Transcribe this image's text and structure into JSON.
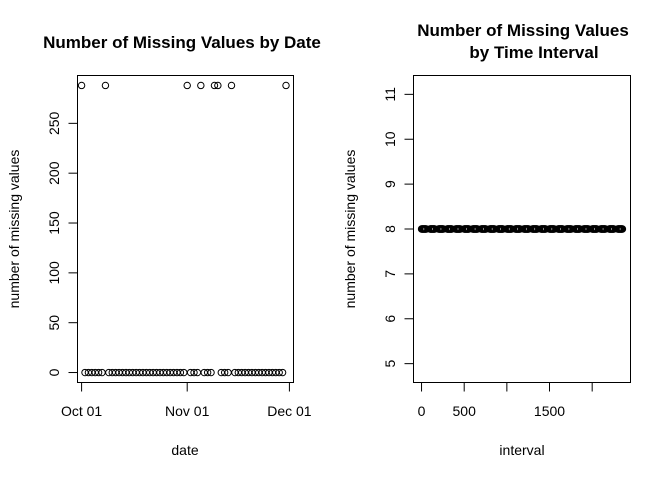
{
  "chart_data": [
    {
      "type": "scatter",
      "title": "Number of Missing Values by Date",
      "xlabel": "date",
      "ylabel": "number of missing values",
      "x_ticks": [
        "Oct 01",
        "Nov 01",
        "Dec 01"
      ],
      "y_ticks": [
        0,
        50,
        100,
        150,
        200,
        250
      ],
      "ylim": [
        -10,
        298
      ],
      "xlim_days": [
        -1.2,
        62.2
      ],
      "x_tick_days": [
        0,
        31,
        61
      ],
      "series": [
        {
          "x_days": [
            0,
            1,
            2,
            3,
            4,
            5,
            6,
            7,
            8,
            9,
            10,
            11,
            12,
            13,
            14,
            15,
            16,
            17,
            18,
            19,
            20,
            21,
            22,
            23,
            24,
            25,
            26,
            27,
            28,
            29,
            30,
            31,
            32,
            33,
            34,
            35,
            36,
            37,
            38,
            39,
            40,
            41,
            42,
            43,
            44,
            45,
            46,
            47,
            48,
            49,
            50,
            51,
            52,
            53,
            54,
            55,
            56,
            57,
            58,
            59,
            60
          ],
          "values": [
            288,
            0,
            0,
            0,
            0,
            0,
            0,
            288,
            0,
            0,
            0,
            0,
            0,
            0,
            0,
            0,
            0,
            0,
            0,
            0,
            0,
            0,
            0,
            0,
            0,
            0,
            0,
            0,
            0,
            0,
            0,
            288,
            0,
            0,
            0,
            288,
            0,
            0,
            0,
            288,
            288,
            0,
            0,
            0,
            288,
            0,
            0,
            0,
            0,
            0,
            0,
            0,
            0,
            0,
            0,
            0,
            0,
            0,
            0,
            0,
            288
          ]
        }
      ]
    },
    {
      "type": "scatter",
      "title": "Number of Missing Values by Time Interval",
      "title_lines": [
        "Number of Missing Values",
        "by Time Interval"
      ],
      "xlabel": "interval",
      "ylabel": "number of missing values",
      "x_ticks": [
        0,
        500,
        1500
      ],
      "x_minor_ticks": [
        0,
        500,
        1000,
        1500,
        2000
      ],
      "y_ticks": [
        5,
        6,
        7,
        8,
        9,
        10,
        11
      ],
      "xlim": [
        -94.2,
        2449.2
      ],
      "ylim": [
        4.58,
        11.42
      ],
      "series": [
        {
          "x_rule": "every 5-minute interval: hhmm for hh in 0..23, mm in 0,5,...,55",
          "value": 8
        }
      ]
    }
  ]
}
